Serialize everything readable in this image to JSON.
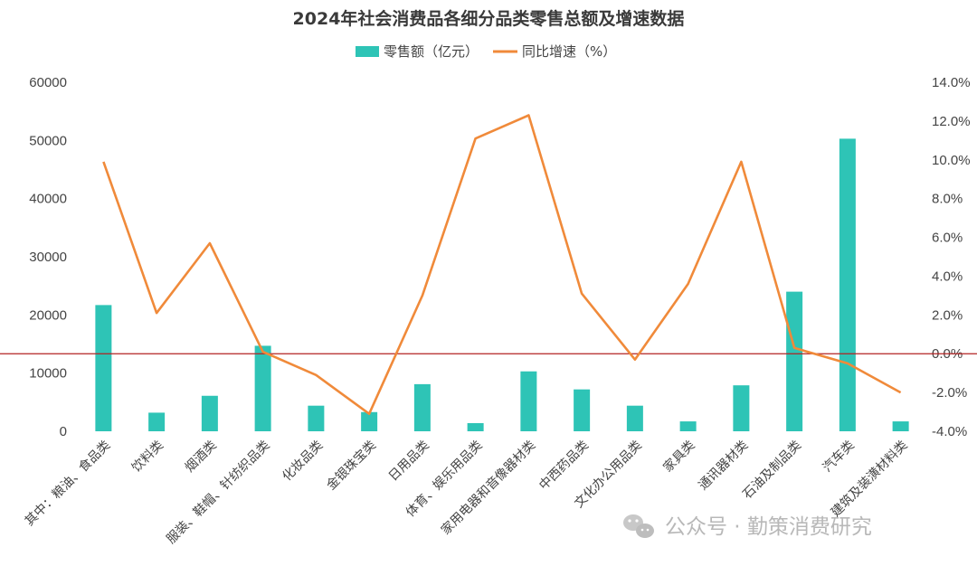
{
  "chart_data": {
    "type": "bar+line",
    "title": "2024年社会消费品各细分品类零售总额及增速数据",
    "legend": [
      "零售额（亿元）",
      "同比增速（%）"
    ],
    "legend_position": "top-center",
    "categories": [
      "其中：粮油、食品类",
      "饮料类",
      "烟酒类",
      "服装、鞋帽、针纺织品类",
      "化妆品类",
      "金银珠宝类",
      "日用品类",
      "体育、娱乐用品类",
      "家用电器和音像器材类",
      "中西药品类",
      "文化办公用品类",
      "家具类",
      "通讯器材类",
      "石油及制品类",
      "汽车类",
      "建筑及装潢材料类"
    ],
    "series": [
      {
        "name": "零售额（亿元）",
        "type": "bar",
        "axis": "left",
        "color": "#2ec4b6",
        "values": [
          21700,
          3200,
          6100,
          14700,
          4400,
          3300,
          8100,
          1400,
          10300,
          7200,
          4400,
          1700,
          7900,
          24000,
          50300,
          1700
        ]
      },
      {
        "name": "同比增速（%）",
        "type": "line",
        "axis": "right",
        "color": "#f08a3a",
        "values": [
          9.9,
          2.1,
          5.7,
          0.1,
          -1.1,
          -3.1,
          3.0,
          11.1,
          12.3,
          3.1,
          -0.3,
          3.6,
          9.9,
          0.3,
          -0.5,
          -2.0
        ]
      }
    ],
    "y_left": {
      "min": 0,
      "max": 60000,
      "ticks": [
        "0",
        "10000",
        "20000",
        "30000",
        "40000",
        "50000",
        "60000"
      ]
    },
    "y_right": {
      "min": -4,
      "max": 14,
      "ticks": [
        "-4.0%",
        "-2.0%",
        "0.0%",
        "2.0%",
        "4.0%",
        "6.0%",
        "8.0%",
        "10.0%",
        "12.0%",
        "14.0%"
      ]
    },
    "zero_line_color": "#b22222",
    "grid": false
  },
  "watermark": "公众号 · 勤策消费研究"
}
